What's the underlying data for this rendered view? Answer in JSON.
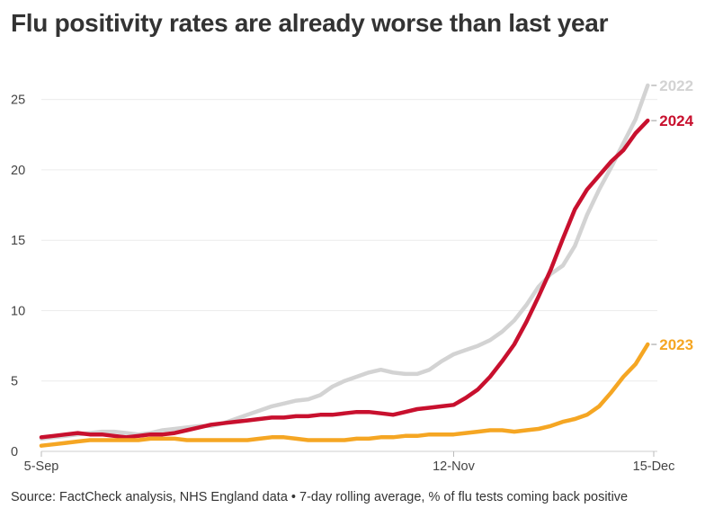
{
  "title": "Flu positivity rates are already worse than last year",
  "source": "Source: FactCheck analysis, NHS England data • 7-day rolling average, % of flu tests coming back positive",
  "chart_data": {
    "type": "line",
    "title": "Flu positivity rates are already worse than last year",
    "xlabel": "",
    "ylabel": "",
    "ylim": [
      0,
      26
    ],
    "yticks": [
      0,
      5,
      10,
      15,
      20,
      25
    ],
    "x_ticks": [
      {
        "day": 0,
        "label": "5-Sep"
      },
      {
        "day": 68,
        "label": "12-Nov"
      },
      {
        "day": 101,
        "label": "15-Dec"
      }
    ],
    "x_range_days": [
      0,
      101
    ],
    "series": [
      {
        "name": "2022",
        "label": "2022",
        "color": "#d3d3d3",
        "points": [
          [
            0,
            0.9
          ],
          [
            2,
            1.0
          ],
          [
            4,
            1.1
          ],
          [
            6,
            1.2
          ],
          [
            8,
            1.3
          ],
          [
            10,
            1.4
          ],
          [
            12,
            1.4
          ],
          [
            14,
            1.3
          ],
          [
            16,
            1.2
          ],
          [
            18,
            1.3
          ],
          [
            20,
            1.5
          ],
          [
            22,
            1.6
          ],
          [
            24,
            1.7
          ],
          [
            26,
            1.8
          ],
          [
            28,
            1.8
          ],
          [
            30,
            2.0
          ],
          [
            32,
            2.3
          ],
          [
            34,
            2.6
          ],
          [
            36,
            2.9
          ],
          [
            38,
            3.2
          ],
          [
            40,
            3.4
          ],
          [
            42,
            3.6
          ],
          [
            44,
            3.7
          ],
          [
            46,
            4.0
          ],
          [
            48,
            4.6
          ],
          [
            50,
            5.0
          ],
          [
            52,
            5.3
          ],
          [
            54,
            5.6
          ],
          [
            56,
            5.8
          ],
          [
            58,
            5.6
          ],
          [
            60,
            5.5
          ],
          [
            62,
            5.5
          ],
          [
            64,
            5.8
          ],
          [
            66,
            6.4
          ],
          [
            68,
            6.9
          ],
          [
            70,
            7.2
          ],
          [
            72,
            7.5
          ],
          [
            74,
            7.9
          ],
          [
            76,
            8.5
          ],
          [
            78,
            9.3
          ],
          [
            80,
            10.4
          ],
          [
            82,
            11.7
          ],
          [
            84,
            12.6
          ],
          [
            86,
            13.2
          ],
          [
            88,
            14.6
          ],
          [
            90,
            16.8
          ],
          [
            92,
            18.6
          ],
          [
            94,
            20.2
          ],
          [
            96,
            21.9
          ],
          [
            98,
            23.6
          ],
          [
            100,
            26.0
          ]
        ]
      },
      {
        "name": "2024",
        "label": "2024",
        "color": "#c8102e",
        "points": [
          [
            0,
            1.0
          ],
          [
            2,
            1.1
          ],
          [
            4,
            1.2
          ],
          [
            6,
            1.3
          ],
          [
            8,
            1.2
          ],
          [
            10,
            1.2
          ],
          [
            12,
            1.1
          ],
          [
            14,
            1.0
          ],
          [
            16,
            1.1
          ],
          [
            18,
            1.2
          ],
          [
            20,
            1.2
          ],
          [
            22,
            1.3
          ],
          [
            24,
            1.5
          ],
          [
            26,
            1.7
          ],
          [
            28,
            1.9
          ],
          [
            30,
            2.0
          ],
          [
            32,
            2.1
          ],
          [
            34,
            2.2
          ],
          [
            36,
            2.3
          ],
          [
            38,
            2.4
          ],
          [
            40,
            2.4
          ],
          [
            42,
            2.5
          ],
          [
            44,
            2.5
          ],
          [
            46,
            2.6
          ],
          [
            48,
            2.6
          ],
          [
            50,
            2.7
          ],
          [
            52,
            2.8
          ],
          [
            54,
            2.8
          ],
          [
            56,
            2.7
          ],
          [
            58,
            2.6
          ],
          [
            60,
            2.8
          ],
          [
            62,
            3.0
          ],
          [
            64,
            3.1
          ],
          [
            66,
            3.2
          ],
          [
            68,
            3.3
          ],
          [
            70,
            3.8
          ],
          [
            72,
            4.4
          ],
          [
            74,
            5.3
          ],
          [
            76,
            6.4
          ],
          [
            78,
            7.6
          ],
          [
            80,
            9.2
          ],
          [
            82,
            11.0
          ],
          [
            84,
            12.9
          ],
          [
            86,
            15.1
          ],
          [
            88,
            17.2
          ],
          [
            90,
            18.6
          ],
          [
            92,
            19.6
          ],
          [
            94,
            20.6
          ],
          [
            96,
            21.4
          ],
          [
            98,
            22.6
          ],
          [
            100,
            23.5
          ]
        ]
      },
      {
        "name": "2023",
        "label": "2023",
        "color": "#f5a623",
        "points": [
          [
            0,
            0.4
          ],
          [
            2,
            0.5
          ],
          [
            4,
            0.6
          ],
          [
            6,
            0.7
          ],
          [
            8,
            0.8
          ],
          [
            10,
            0.8
          ],
          [
            12,
            0.8
          ],
          [
            14,
            0.8
          ],
          [
            16,
            0.8
          ],
          [
            18,
            0.9
          ],
          [
            20,
            0.9
          ],
          [
            22,
            0.9
          ],
          [
            24,
            0.8
          ],
          [
            26,
            0.8
          ],
          [
            28,
            0.8
          ],
          [
            30,
            0.8
          ],
          [
            32,
            0.8
          ],
          [
            34,
            0.8
          ],
          [
            36,
            0.9
          ],
          [
            38,
            1.0
          ],
          [
            40,
            1.0
          ],
          [
            42,
            0.9
          ],
          [
            44,
            0.8
          ],
          [
            46,
            0.8
          ],
          [
            48,
            0.8
          ],
          [
            50,
            0.8
          ],
          [
            52,
            0.9
          ],
          [
            54,
            0.9
          ],
          [
            56,
            1.0
          ],
          [
            58,
            1.0
          ],
          [
            60,
            1.1
          ],
          [
            62,
            1.1
          ],
          [
            64,
            1.2
          ],
          [
            66,
            1.2
          ],
          [
            68,
            1.2
          ],
          [
            70,
            1.3
          ],
          [
            72,
            1.4
          ],
          [
            74,
            1.5
          ],
          [
            76,
            1.5
          ],
          [
            78,
            1.4
          ],
          [
            80,
            1.5
          ],
          [
            82,
            1.6
          ],
          [
            84,
            1.8
          ],
          [
            86,
            2.1
          ],
          [
            88,
            2.3
          ],
          [
            90,
            2.6
          ],
          [
            92,
            3.2
          ],
          [
            94,
            4.2
          ],
          [
            96,
            5.3
          ],
          [
            98,
            6.2
          ],
          [
            100,
            7.6
          ]
        ]
      }
    ]
  }
}
